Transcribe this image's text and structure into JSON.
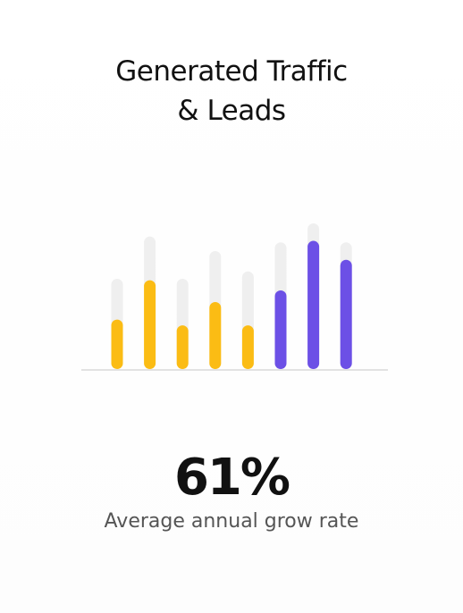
{
  "title": {
    "line1": "Generated Traffic",
    "line2": "& Leads"
  },
  "stat": {
    "value": "61%",
    "label": "Average annual grow rate"
  },
  "colors": {
    "track": "#efefef",
    "yellow": "#fbbc14",
    "purple": "#6c50e6",
    "baseline": "#e2e2e2"
  },
  "chart_data": {
    "type": "bar",
    "title": "",
    "xlabel": "",
    "ylabel": "",
    "ylim": [
      0,
      100
    ],
    "grid": false,
    "categories": [
      "",
      "",
      "",
      "",
      "",
      "",
      "",
      ""
    ],
    "series": [
      {
        "values": [
          34,
          61,
          30,
          46,
          30,
          54,
          88,
          75
        ]
      }
    ],
    "capacity": [
      62,
      91,
      62,
      81,
      67,
      87,
      100,
      87
    ],
    "bar_colors": [
      "yellow",
      "yellow",
      "yellow",
      "yellow",
      "yellow",
      "purple",
      "purple",
      "purple"
    ]
  }
}
